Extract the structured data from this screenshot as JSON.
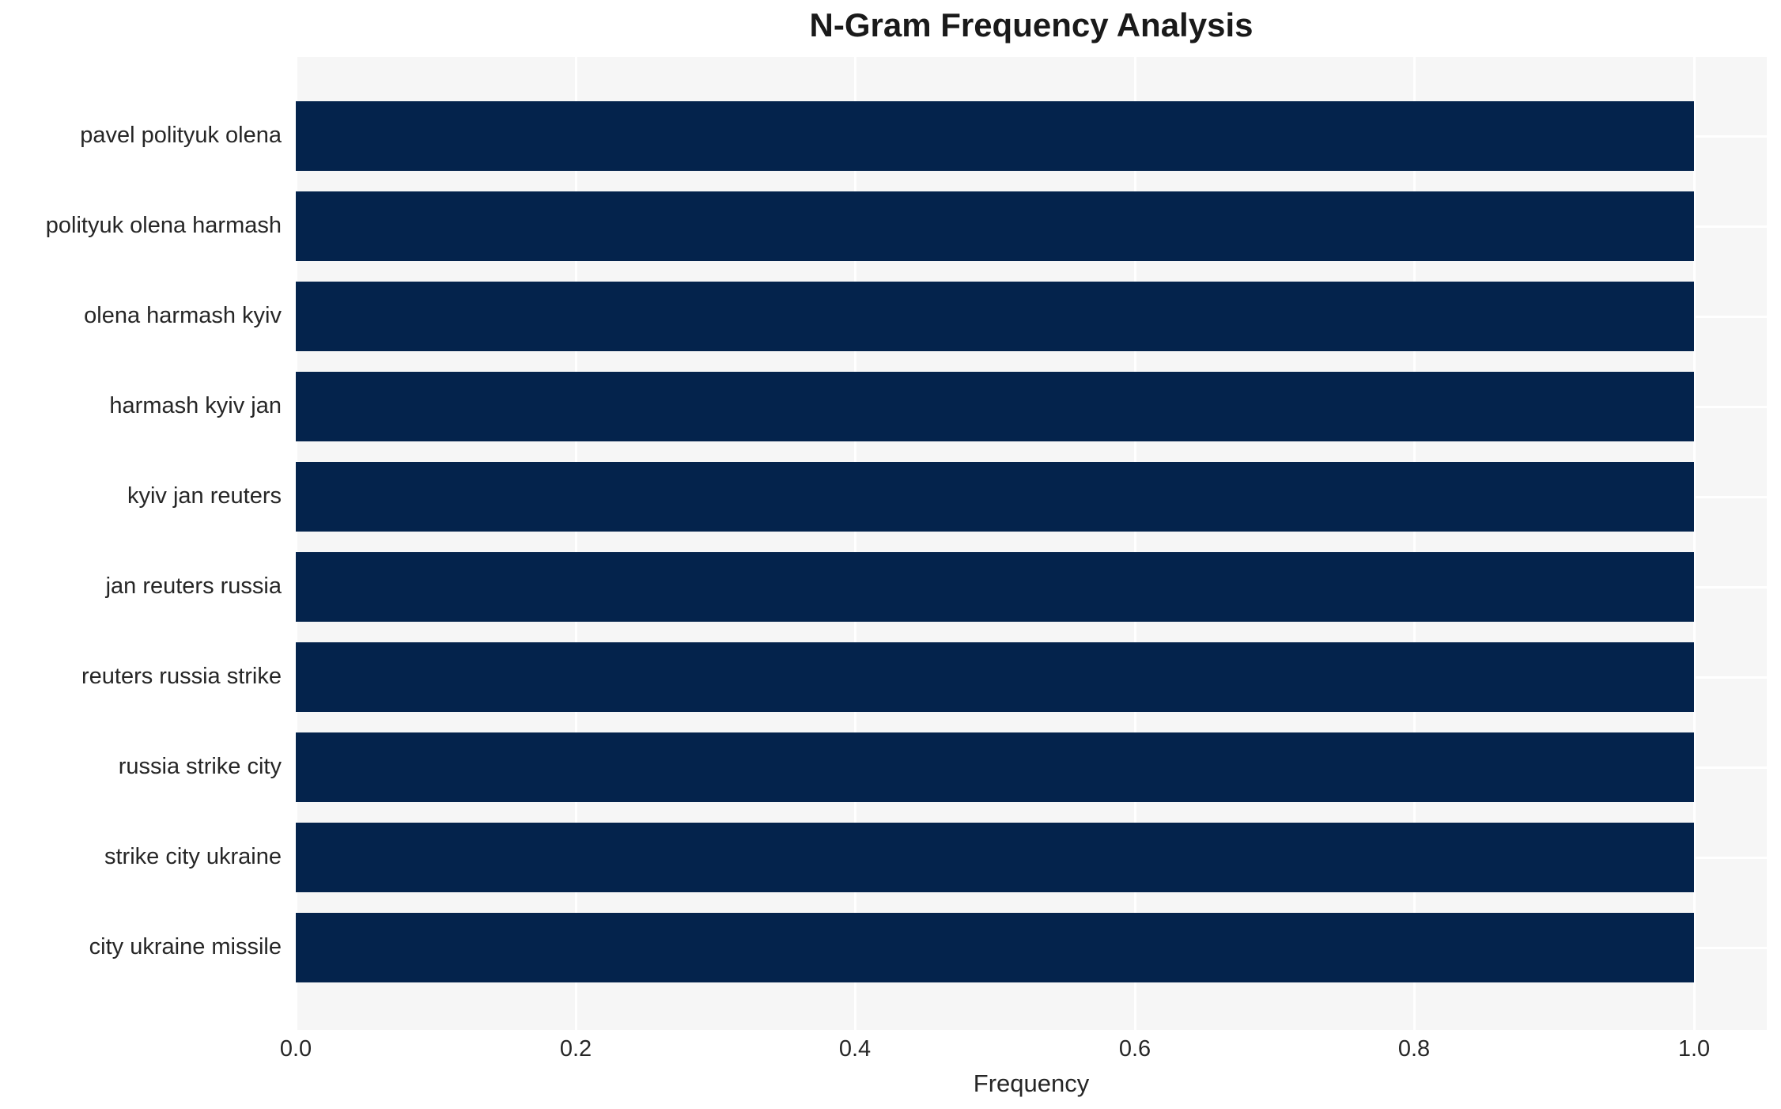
{
  "chart_data": {
    "type": "bar",
    "orientation": "horizontal",
    "title": "N-Gram Frequency Analysis",
    "xlabel": "Frequency",
    "ylabel": "",
    "categories": [
      "pavel polityuk olena",
      "polityuk olena harmash",
      "olena harmash kyiv",
      "harmash kyiv jan",
      "kyiv jan reuters",
      "jan reuters russia",
      "reuters russia strike",
      "russia strike city",
      "strike city ukraine",
      "city ukraine missile"
    ],
    "values": [
      1.0,
      1.0,
      1.0,
      1.0,
      1.0,
      1.0,
      1.0,
      1.0,
      1.0,
      1.0
    ],
    "x_ticks": [
      0.0,
      0.2,
      0.4,
      0.6,
      0.8,
      1.0
    ],
    "x_tick_labels": [
      "0.0",
      "0.2",
      "0.4",
      "0.6",
      "0.8",
      "1.0"
    ],
    "xlim": [
      0.0,
      1.05
    ],
    "grid": "white gridlines on light gray plot background",
    "legend": "none",
    "colors": {
      "bar": "#04234c",
      "plot_background": "#f6f6f6",
      "page_background": "#ffffff",
      "gridline": "#ffffff",
      "text": "#262626",
      "title_text": "#1a1a1a"
    }
  }
}
